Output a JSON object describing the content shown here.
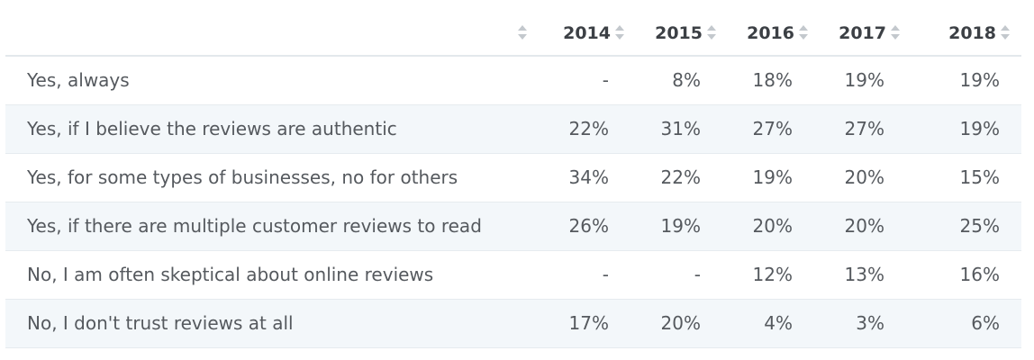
{
  "chart_data": {
    "type": "table",
    "columns": [
      "",
      "2014",
      "2015",
      "2016",
      "2017",
      "2018"
    ],
    "rows": [
      {
        "label": "Yes, always",
        "values": [
          "-",
          "8%",
          "18%",
          "19%",
          "19%"
        ]
      },
      {
        "label": "Yes, if I believe the reviews are authentic",
        "values": [
          "22%",
          "31%",
          "27%",
          "27%",
          "19%"
        ]
      },
      {
        "label": "Yes, for some types of businesses, no for others",
        "values": [
          "34%",
          "22%",
          "19%",
          "20%",
          "15%"
        ]
      },
      {
        "label": "Yes, if there are multiple customer reviews to read",
        "values": [
          "26%",
          "19%",
          "20%",
          "20%",
          "25%"
        ]
      },
      {
        "label": "No, I am often skeptical about online reviews",
        "values": [
          "-",
          "-",
          "12%",
          "13%",
          "16%"
        ]
      },
      {
        "label": "No, I don't trust reviews at all",
        "values": [
          "17%",
          "20%",
          "4%",
          "3%",
          "6%"
        ]
      }
    ]
  },
  "icons": {
    "sort": "sort-icon"
  },
  "colors": {
    "header_text": "#3c4045",
    "cell_text": "#55595e",
    "stripe": "#f3f7fa",
    "border": "#e3e8ec",
    "sort_icon": "#c3c8cd"
  }
}
